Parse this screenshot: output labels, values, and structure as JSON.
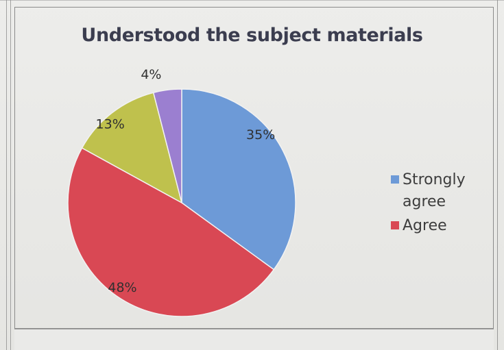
{
  "chart_data": {
    "type": "pie",
    "title": "Understood the subject materials",
    "categories": [
      "Strongly agree",
      "Agree",
      "",
      ""
    ],
    "values": [
      35,
      48,
      13,
      4
    ],
    "labels": [
      "35%",
      "48%",
      "13%",
      "4%"
    ],
    "colors": [
      "#6d9ad7",
      "#d94854",
      "#bfc14d",
      "#9b7fd0"
    ],
    "legend": [
      {
        "label": "Strongly agree",
        "color": "#6d9ad7"
      },
      {
        "label": "Agree",
        "color": "#d94854"
      }
    ],
    "legend_position": "right"
  }
}
